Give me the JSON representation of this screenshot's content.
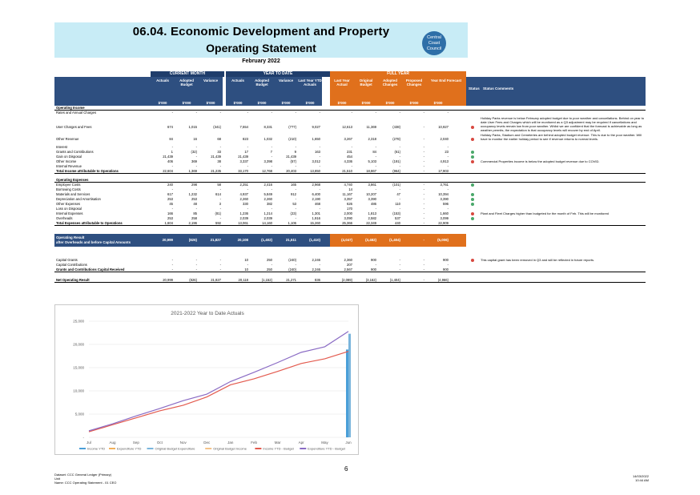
{
  "header": {
    "title": "06.04. Economic Development and Property",
    "subtitle": "Operating Statement",
    "period": "February 2022",
    "logo_text": [
      "Central",
      "Coast",
      "Council"
    ]
  },
  "column_groups": {
    "current_month": "CURRENT MONTH",
    "ytd": "YEAR TO DATE",
    "full_year": "FULL YEAR"
  },
  "columns": [
    "Actuals",
    "Adopted Budget",
    "Variance",
    "Actuals",
    "Adopted Budget",
    "Variance",
    "Last Year YTD Actuals",
    "Last Year Actual",
    "Original Budget",
    "Adopted Changes",
    "Proposed Changes",
    "Year End Forecast",
    "Status",
    "Status Comments"
  ],
  "unit": "$'000",
  "rows": [
    {
      "label": "Operating Income",
      "bold": true,
      "values": [
        "",
        "",
        "",
        "",
        "",
        "",
        "",
        "",
        "",
        "",
        "",
        ""
      ]
    },
    {
      "label": "Rates and Annual Charges",
      "values": [
        "-",
        "-",
        "-",
        "-",
        "-",
        "-",
        "-",
        "-",
        "-",
        "-",
        "-",
        "-"
      ]
    },
    {
      "label": "User Charges and Fees",
      "values": [
        "674",
        "1,015",
        "(341)",
        "7,554",
        "8,331",
        "(777)",
        "9,027",
        "12,613",
        "11,369",
        "(438)",
        "-",
        "10,927"
      ],
      "status": "r"
    },
    {
      "label": "Other Revenue",
      "values": [
        "84",
        "16",
        "68",
        "823",
        "1,032",
        "(210)",
        "1,650",
        "3,267",
        "2,318",
        "(278)",
        "-",
        "2,040"
      ],
      "status": "r"
    },
    {
      "label": "Interest",
      "values": [
        "-",
        "-",
        "-",
        "-",
        "-",
        "-",
        "-",
        "-",
        "-",
        "-",
        "-",
        "-"
      ]
    },
    {
      "label": "Grants and Contributions",
      "values": [
        "1",
        "(32)",
        "33",
        "17",
        "7",
        "9",
        "163",
        "231",
        "84",
        "(61)",
        "-",
        "23"
      ],
      "status": "g"
    },
    {
      "label": "Gain on Disposal",
      "values": [
        "21,439",
        "-",
        "21,439",
        "21,439",
        "-",
        "21,439",
        "-",
        "454",
        "-",
        "-",
        "-",
        "-"
      ],
      "status": "g"
    },
    {
      "label": "Other Income",
      "values": [
        "406",
        "369",
        "38",
        "3,337",
        "3,398",
        "(57)",
        "3,012",
        "4,336",
        "5,103",
        "(191)",
        "-",
        "4,913"
      ],
      "status": "r"
    },
    {
      "label": "Internal Revenue",
      "values": [
        "-",
        "-",
        "-",
        "-",
        "-",
        "-",
        "-",
        "-",
        "-",
        "-",
        "-",
        "-"
      ]
    },
    {
      "label": "Total Income attributable to Operations",
      "bold": true,
      "values": [
        "22,604",
        "1,369",
        "21,235",
        "33,170",
        "12,768",
        "20,403",
        "13,850",
        "21,510",
        "18,867",
        "(964)",
        "-",
        "17,903"
      ]
    },
    {
      "label": "Operating Expenses",
      "bold": true,
      "values": [
        "",
        "",
        "",
        "",
        "",
        "",
        "",
        "",
        "",
        "",
        "",
        ""
      ]
    },
    {
      "label": "Employee Costs",
      "values": [
        "240",
        "298",
        "58",
        "2,251",
        "2,416",
        "165",
        "2,968",
        "4,740",
        "3,861",
        "(101)",
        "-",
        "3,761"
      ],
      "status": "g"
    },
    {
      "label": "Borrowing Costs",
      "values": [
        "-",
        "-",
        "-",
        "-",
        "-",
        "-",
        "-",
        "14",
        "-",
        "-",
        "-",
        "-"
      ]
    },
    {
      "label": "Materials and Services",
      "values": [
        "617",
        "1,232",
        "614",
        "4,937",
        "5,849",
        "912",
        "6,400",
        "11,167",
        "10,207",
        "47",
        "-",
        "10,394"
      ],
      "status": "g"
    },
    {
      "label": "Depreciation and Amortisation",
      "values": [
        "253",
        "253",
        "-",
        "2,260",
        "2,260",
        "-",
        "2,190",
        "3,357",
        "3,390",
        "-",
        "-",
        "3,390"
      ],
      "status": "g"
    },
    {
      "label": "Other Expenses",
      "values": [
        "45",
        "48",
        "3",
        "330",
        "382",
        "53",
        "468",
        "626",
        "486",
        "110",
        "-",
        "596"
      ],
      "status": "g"
    },
    {
      "label": "Loss on Disposal",
      "values": [
        "-",
        "-",
        "-",
        "-",
        "-",
        "-",
        "-",
        "170",
        "-",
        "-",
        "-",
        "-"
      ]
    },
    {
      "label": "Internal Expenses",
      "values": [
        "166",
        "85",
        "(81)",
        "1,236",
        "1,214",
        "(23)",
        "1,301",
        "2,000",
        "1,813",
        "(153)",
        "-",
        "1,660"
      ],
      "status": "r"
    },
    {
      "label": "Overheads",
      "values": [
        "253",
        "258",
        "-",
        "2,039",
        "2,039",
        "-",
        "1,916",
        "3,090",
        "2,582",
        "537",
        "-",
        "3,099"
      ],
      "status": "g"
    },
    {
      "label": "Total Expenses attributable to Operations",
      "bold": true,
      "values": [
        "1,604",
        "2,196",
        "592",
        "13,061",
        "14,160",
        "1,106",
        "15,260",
        "25,366",
        "22,349",
        "440",
        "-",
        "22,909"
      ]
    }
  ],
  "operating_result": {
    "label1": "Operating Result",
    "label2": "after Overheads and before Capital Amounts",
    "values": [
      "20,999",
      "(826)",
      "21,827",
      "20,108",
      "(1,402)",
      "21,511",
      "(1,410)",
      "(4,047)",
      "(3,482)",
      "(1,404)",
      "-",
      "(5,006)"
    ]
  },
  "capital_rows": [
    {
      "label": "Capital Grants",
      "values": [
        "-",
        "-",
        "-",
        "10",
        "250",
        "(240)",
        "2,246",
        "2,360",
        "900",
        "-",
        "-",
        "900"
      ],
      "status": "r"
    },
    {
      "label": "Capital Contributions",
      "values": [
        "-",
        "-",
        "-",
        "-",
        "-",
        "-",
        "-",
        "207",
        "-",
        "-",
        "-",
        "-"
      ]
    },
    {
      "label": "Grants and Contributions Capital Received",
      "bold": true,
      "values": [
        "-",
        "-",
        "-",
        "10",
        "250",
        "(240)",
        "2,246",
        "2,567",
        "900",
        "-",
        "-",
        "900"
      ]
    },
    {
      "label": "Net Operating Result",
      "bold": true,
      "values": [
        "20,999",
        "(826)",
        "21,827",
        "20,118",
        "(1,152)",
        "21,271",
        "836",
        "(2,089)",
        "(3,162)",
        "(1,404)",
        "-",
        "(4,966)"
      ]
    }
  ],
  "comments": {
    "user_charges": "Holiday Parks revenue is below February adopted budget due to poor weather and cancellations. Behind on year to date User Fees and Charges which will be monitored as a Q3 adjustment may be required if cancellations and occupancy levels remain low from poor weather. Whilst we are confident that the forecast is achievable as long as weather permits, the expectation is that occupancy levels will recover by end of April.",
    "other_revenue": "Holiday Parks, Stadium and Cemeteries are behind adopted budget revenue. This is due to the poor weather. Will have to monitor the earlier holiday period to see if revenue returns to normal levels.",
    "other_income": "Commercial Properties income is below the adopted budget revenue due to COVID.",
    "internal_expenses": "Plant and Fleet Charges higher than budgeted for the month of Feb. This will be monitored",
    "capital_grants": "This capital grant has been removed in Q3 and will be reflected in future reports."
  },
  "chart_data": {
    "type": "line",
    "title": "2021-2022 Year to Date Actuals",
    "categories": [
      "Jul",
      "Aug",
      "Sep",
      "Oct",
      "Nov",
      "Dec",
      "Jan",
      "Feb",
      "Mar",
      "Apr",
      "May",
      "Jun"
    ],
    "ylim": [
      0,
      25000
    ],
    "yticks": [
      "-",
      "5,000",
      "10,000",
      "15,000",
      "20,000",
      "25,000"
    ],
    "ytick_values": [
      0,
      5000,
      10000,
      15000,
      20000,
      25000
    ],
    "series": [
      {
        "name": "Income YTD",
        "kind": "bar",
        "color": "#4a9fd8",
        "values": [
          null,
          null,
          null,
          null,
          null,
          null,
          null,
          null,
          null,
          null,
          null,
          18900
        ]
      },
      {
        "name": "Expenditure YTD",
        "kind": "bar",
        "color": "#f2b05a",
        "values": [
          null,
          null,
          null,
          null,
          null,
          null,
          null,
          null,
          null,
          null,
          null,
          0
        ]
      },
      {
        "name": "Original Budget Expenditure",
        "kind": "bar",
        "color": "#7ab5dc",
        "values": [
          null,
          null,
          null,
          null,
          null,
          null,
          null,
          null,
          null,
          null,
          null,
          22300
        ]
      },
      {
        "name": "Original Budget Income",
        "kind": "bar",
        "color": "#f4c38a",
        "values": [
          null,
          null,
          null,
          null,
          null,
          null,
          null,
          null,
          null,
          null,
          null,
          0
        ]
      },
      {
        "name": "Income YTD - Budget",
        "kind": "line",
        "color": "#e35a4e",
        "values": [
          1200,
          2700,
          4200,
          5700,
          6900,
          8700,
          11300,
          12600,
          14200,
          15900,
          16900,
          18500
        ]
      },
      {
        "name": "Expenditure YTD - Budget",
        "kind": "line",
        "color": "#8a6bc4",
        "values": [
          1400,
          2900,
          4600,
          6200,
          7900,
          9300,
          12000,
          14000,
          16100,
          18300,
          19500,
          22800
        ]
      }
    ],
    "legend": "bottom"
  },
  "footer": {
    "left1": "Dataset: CCC General Ledger (Primary)",
    "left2": "Unit",
    "left3": "Name: CCC Operating Statement - 01 CEO",
    "page": "6",
    "right1": "14/03/2022",
    "right2": "10:44 AM"
  }
}
